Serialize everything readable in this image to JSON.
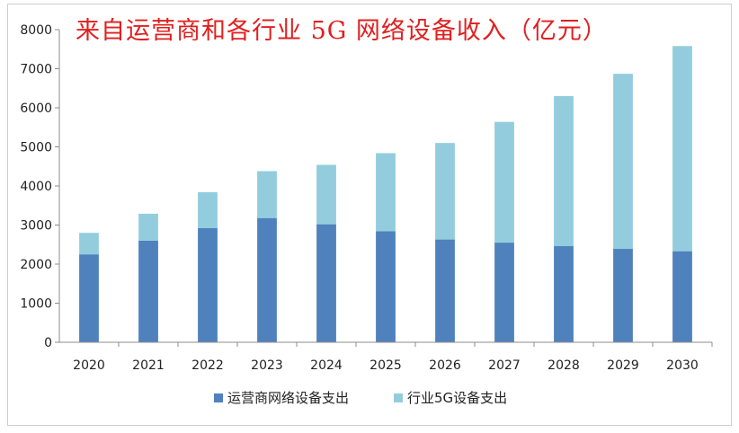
{
  "chart_data": {
    "type": "bar",
    "stacked": true,
    "title": "来自运营商和各行业 5G 网络设备收入（亿元）",
    "xlabel": "",
    "ylabel": "",
    "categories": [
      "2020",
      "2021",
      "2022",
      "2023",
      "2024",
      "2025",
      "2026",
      "2027",
      "2028",
      "2029",
      "2030"
    ],
    "series": [
      {
        "name": "运营商网络设备支出",
        "color": "#4f81bd",
        "values": [
          2250,
          2600,
          2920,
          3180,
          3020,
          2840,
          2630,
          2550,
          2460,
          2390,
          2330
        ]
      },
      {
        "name": "行业5G设备支出",
        "color": "#93cddd",
        "values": [
          550,
          690,
          920,
          1200,
          1520,
          2000,
          2470,
          3090,
          3840,
          4480,
          5250
        ]
      }
    ],
    "ylim": [
      0,
      8000
    ],
    "yticks": [
      0,
      1000,
      2000,
      3000,
      4000,
      5000,
      6000,
      7000,
      8000
    ],
    "grid": false,
    "legend_position": "bottom"
  }
}
